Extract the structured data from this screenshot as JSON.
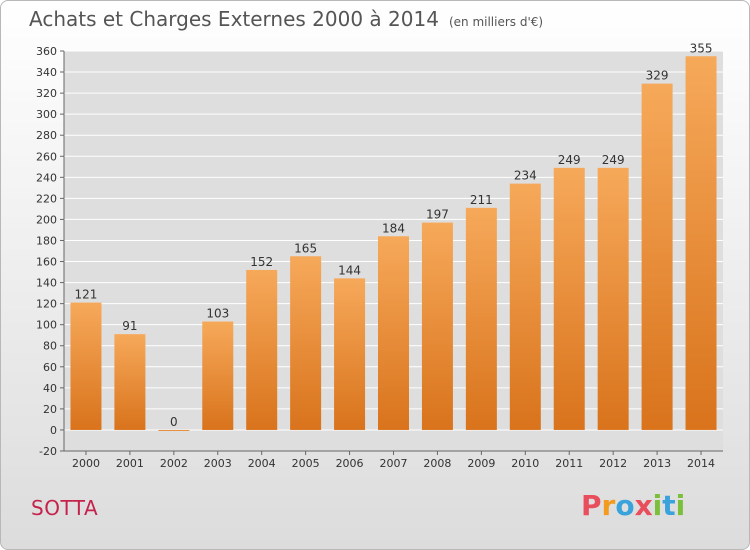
{
  "header": {
    "title": "Achats et Charges Externes 2000 à 2014",
    "subtitle": "(en milliers d'€)"
  },
  "footer": {
    "place": "SOTTA",
    "brand": {
      "letters": [
        "P",
        "r",
        "o",
        "x",
        "i",
        "t",
        "i"
      ],
      "colors": [
        "#e84e5c",
        "#f29b1f",
        "#3aa3dc",
        "#e84e5c",
        "#7bbf3a",
        "#3aa3dc",
        "#7bbf3a"
      ]
    }
  },
  "chart_data": {
    "type": "bar",
    "categories": [
      "2000",
      "2001",
      "2002",
      "2003",
      "2004",
      "2005",
      "2006",
      "2007",
      "2008",
      "2009",
      "2010",
      "2011",
      "2012",
      "2013",
      "2014"
    ],
    "values": [
      121,
      91,
      0,
      103,
      152,
      165,
      144,
      184,
      197,
      211,
      234,
      249,
      249,
      329,
      355
    ],
    "data_labels": [
      "121",
      "91",
      "0",
      "103",
      "152",
      "165",
      "144",
      "184",
      "197",
      "211",
      "234",
      "249",
      "249",
      "329",
      "355"
    ],
    "ylim": [
      -20,
      360
    ],
    "yticks": [
      -20,
      0,
      20,
      40,
      60,
      80,
      100,
      120,
      140,
      160,
      180,
      200,
      220,
      240,
      260,
      280,
      300,
      320,
      340,
      360
    ],
    "grid": true,
    "bar_color_top": "#f6a95a",
    "bar_color_bottom": "#d9731c"
  }
}
